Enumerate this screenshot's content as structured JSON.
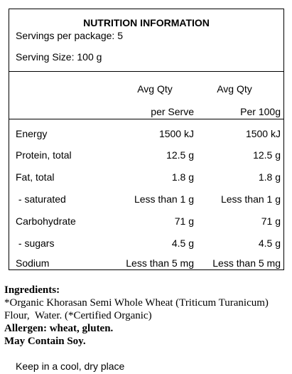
{
  "header": {
    "title": "NUTRITION INFORMATION",
    "servings": "Servings per package: 5",
    "serving_size": "Serving Size: 100 g"
  },
  "table": {
    "columns": [
      [
        "Avg Qty",
        "per Serve"
      ],
      [
        "Avg Qty",
        "Per 100g"
      ]
    ],
    "rows": [
      [
        "Energy",
        "1500 kJ",
        "1500 kJ"
      ],
      [
        "Protein, total",
        "12.5 g",
        "12.5 g"
      ],
      [
        "Fat, total",
        "1.8 g",
        "1.8 g"
      ],
      [
        " - saturated",
        "Less than 1 g",
        "Less than 1 g"
      ],
      [
        "Carbohydrate",
        "71 g",
        "71 g"
      ],
      [
        " - sugars",
        "4.5 g",
        "4.5 g"
      ],
      [
        "Sodium",
        "Less than 5 mg",
        "Less than 5 mg"
      ]
    ]
  },
  "ingredients": {
    "heading": "Ingredients:",
    "lines": [
      "*Organic Khorasan Semi Whole Wheat (Triticum Turanicum)",
      "Flour,  Water. (*Certified Organic)"
    ]
  },
  "allergen": "Allergen: wheat, gluten.",
  "may_contain": "May Contain Soy.",
  "storage": "Keep in a cool, dry place"
}
